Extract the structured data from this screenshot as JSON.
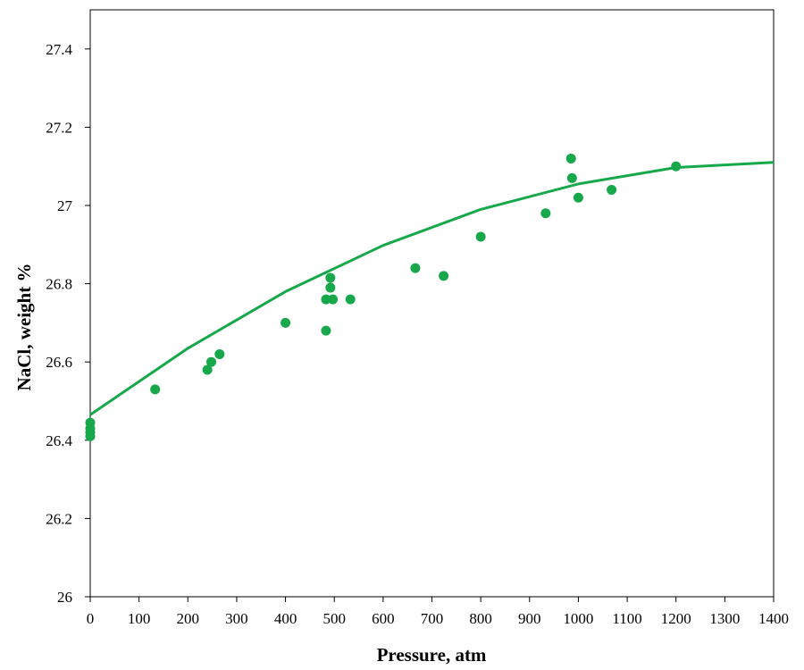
{
  "chart_data": {
    "type": "scatter",
    "title": "",
    "xlabel": "Pressure, atm",
    "ylabel": "NaCl, weight %",
    "xlim": [
      0,
      1400
    ],
    "ylim": [
      26,
      27.5
    ],
    "x_ticks": [
      0,
      100,
      200,
      300,
      400,
      500,
      600,
      700,
      800,
      900,
      1000,
      1100,
      1200,
      1300,
      1400
    ],
    "y_ticks": [
      26,
      26.2,
      26.4,
      26.6,
      26.8,
      27,
      27.2,
      27.4
    ],
    "y_tick_labels": [
      "26",
      "26.2",
      "26.4",
      "26.6",
      "26.8",
      "27",
      "27.2",
      "27.4"
    ],
    "grid": false,
    "series_color": "#16a84a",
    "series": [
      {
        "type": "scatter",
        "points": [
          {
            "x": 0,
            "y": 26.41
          },
          {
            "x": 0,
            "y": 26.42
          },
          {
            "x": 0,
            "y": 26.43
          },
          {
            "x": 0,
            "y": 26.445
          },
          {
            "x": 133,
            "y": 26.53
          },
          {
            "x": 240,
            "y": 26.58
          },
          {
            "x": 248,
            "y": 26.6
          },
          {
            "x": 265,
            "y": 26.62
          },
          {
            "x": 400,
            "y": 26.7
          },
          {
            "x": 483,
            "y": 26.68
          },
          {
            "x": 483,
            "y": 26.76
          },
          {
            "x": 492,
            "y": 26.79
          },
          {
            "x": 492,
            "y": 26.815
          },
          {
            "x": 497,
            "y": 26.76
          },
          {
            "x": 533,
            "y": 26.76
          },
          {
            "x": 666,
            "y": 26.84
          },
          {
            "x": 724,
            "y": 26.82
          },
          {
            "x": 800,
            "y": 26.92
          },
          {
            "x": 933,
            "y": 26.98
          },
          {
            "x": 985,
            "y": 27.12
          },
          {
            "x": 987,
            "y": 27.07
          },
          {
            "x": 1000,
            "y": 27.02
          },
          {
            "x": 1068,
            "y": 27.04
          },
          {
            "x": 1200,
            "y": 27.1
          }
        ]
      },
      {
        "type": "line",
        "points": [
          {
            "x": 0,
            "y": 26.465
          },
          {
            "x": 200,
            "y": 26.635
          },
          {
            "x": 400,
            "y": 26.78
          },
          {
            "x": 600,
            "y": 26.898
          },
          {
            "x": 800,
            "y": 26.99
          },
          {
            "x": 1000,
            "y": 27.055
          },
          {
            "x": 1200,
            "y": 27.097
          },
          {
            "x": 1400,
            "y": 27.11
          }
        ]
      }
    ]
  }
}
